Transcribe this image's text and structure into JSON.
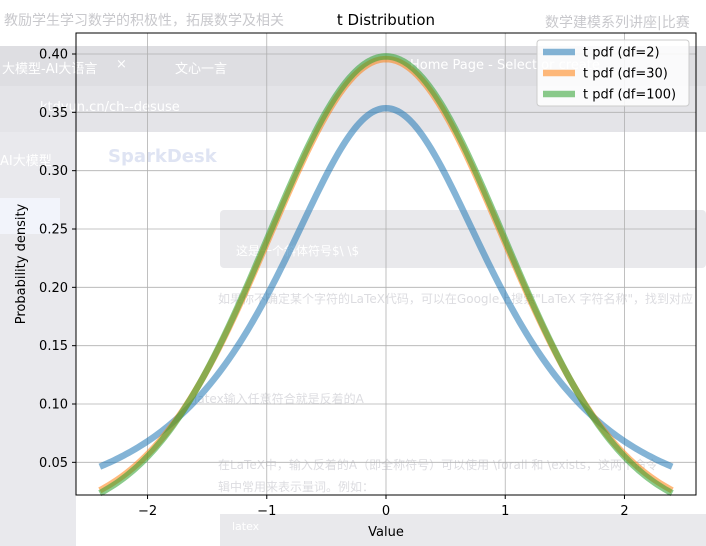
{
  "background": {
    "top_text": "教励学生学习数学的积极性，拓展数学及相关",
    "top_right_text": "数学建模系列讲座|比赛",
    "tab1": "大模型-AI大语言",
    "tab1_close": "×",
    "tab2": "文心一言",
    "tab3": "Home Page - Select or create",
    "url_text": "ktdyun.cn/ch--desuse",
    "brand": "SparkDesk",
    "side_label": "AI大模型",
    "code_line": "这是一个斜体符号$\\ \\$",
    "hint_line": "如果你不确定某个字符的LaTeX代码，可以在Google上搜索\"LaTeX 字符名称\"，找到对应",
    "latex_line": "latex输入任意符合就是反着的A",
    "desc_line1": "在LaTeX中，输入反着的A（即全称符号）可以使用 \\forall 和 \\exists，这两个命令",
    "desc_line2": "辑中常用来表示量词。例如：",
    "code_label": "latex"
  },
  "chart_data": {
    "type": "line",
    "title": "t Distribution",
    "xlabel": "Value",
    "ylabel": "Probability density",
    "xlim": [
      -2.6,
      2.6
    ],
    "ylim": [
      0.022,
      0.418
    ],
    "x_ticks": [
      -2,
      -1,
      0,
      1,
      2
    ],
    "x_tick_labels": [
      "−2",
      "−1",
      "0",
      "1",
      "2"
    ],
    "y_ticks": [
      0.05,
      0.1,
      0.15,
      0.2,
      0.25,
      0.3,
      0.35,
      0.4
    ],
    "y_tick_labels": [
      "0.05",
      "0.10",
      "0.15",
      "0.20",
      "0.25",
      "0.30",
      "0.35",
      "0.40"
    ],
    "grid": true,
    "legend_position": "top-right",
    "x_range": [
      -2.4,
      2.4
    ],
    "series": [
      {
        "name": "t pdf (df=2)",
        "df": 2,
        "color": "#1f77b4"
      },
      {
        "name": "t pdf (df=30)",
        "df": 30,
        "color": "#ff7f0e"
      },
      {
        "name": "t pdf (df=100)",
        "df": 100,
        "color": "#2ca02c"
      }
    ]
  }
}
